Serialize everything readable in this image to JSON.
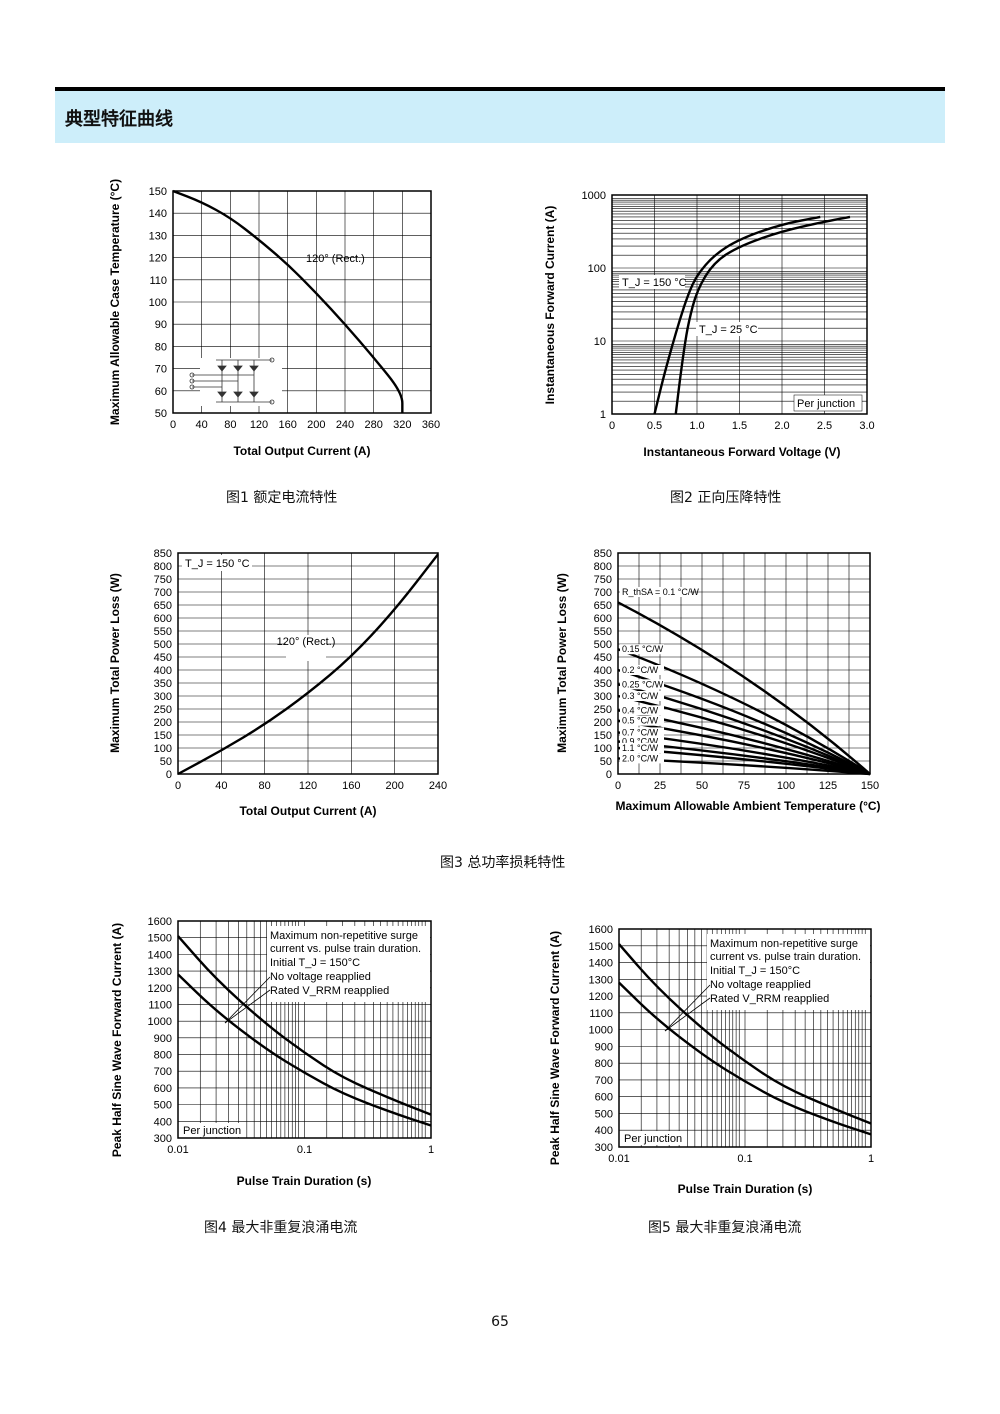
{
  "section_title": "典型特征曲线",
  "captions": {
    "fig1": "图1 额定电流特性",
    "fig2": "图2 正向压降特性",
    "fig3": "图3 总功率损耗特性",
    "fig4": "图4 最大非重复浪涌电流",
    "fig5": "图5 最大非重复浪涌电流"
  },
  "page_number": "65",
  "chart_data": [
    {
      "id": "fig1",
      "type": "line",
      "xlabel": "Total Output Current (A)",
      "ylabel": "Maximum Allowable Case Temperature (°C)",
      "xlim": [
        0,
        360
      ],
      "ylim": [
        50,
        150
      ],
      "xticks": [
        0,
        40,
        80,
        120,
        160,
        200,
        240,
        280,
        320,
        360
      ],
      "yticks": [
        50,
        60,
        70,
        80,
        90,
        100,
        110,
        120,
        130,
        140,
        150
      ],
      "grid": true,
      "annotations": [
        "120° (Rect.)"
      ],
      "series": [
        {
          "name": "120° (Rect.)",
          "x": [
            0,
            40,
            80,
            120,
            160,
            200,
            240,
            280,
            320,
            320
          ],
          "y": [
            150,
            145,
            138,
            128,
            117,
            104,
            90,
            75,
            59,
            50
          ]
        }
      ]
    },
    {
      "id": "fig2",
      "type": "line",
      "xlabel": "Instantaneous Forward Voltage (V)",
      "ylabel": "Instantaneous Forward Current (A)",
      "xlim": [
        0,
        3.0
      ],
      "ylim": [
        1,
        1000
      ],
      "yscale": "log",
      "xticks": [
        "0",
        "0.5",
        "1.0",
        "1.5",
        "2.0",
        "2.5",
        "3.0"
      ],
      "yticks": [
        "1",
        "10",
        "100",
        "1000"
      ],
      "grid": true,
      "annotations": [
        "Per junction"
      ],
      "series": [
        {
          "name": "T_J = 150 °C",
          "x": [
            0.5,
            0.6,
            0.7,
            0.8,
            0.9,
            1.0,
            1.2,
            1.5,
            2.0,
            2.45
          ],
          "y": [
            1,
            3,
            8,
            20,
            45,
            80,
            150,
            250,
            400,
            500
          ]
        },
        {
          "name": "T_J = 25 °C",
          "x": [
            0.75,
            0.8,
            0.85,
            0.9,
            1.0,
            1.2,
            1.5,
            2.0,
            2.5,
            2.8
          ],
          "y": [
            1,
            3,
            8,
            18,
            50,
            120,
            200,
            320,
            430,
            500
          ]
        }
      ]
    },
    {
      "id": "fig3a",
      "type": "line",
      "xlabel": "Total Output Current (A)",
      "ylabel": "Maximum Total Power Loss (W)",
      "xlim": [
        0,
        240
      ],
      "ylim": [
        0,
        850
      ],
      "xticks": [
        0,
        40,
        80,
        120,
        160,
        200,
        240
      ],
      "yticks": [
        0,
        50,
        100,
        150,
        200,
        250,
        300,
        350,
        400,
        450,
        500,
        550,
        600,
        650,
        700,
        750,
        800,
        850
      ],
      "grid": true,
      "annotations": [
        "T_J = 150 °C",
        "120° (Rect.)"
      ],
      "series": [
        {
          "name": "120° (Rect.)",
          "x": [
            0,
            40,
            80,
            120,
            160,
            200,
            240
          ],
          "y": [
            0,
            90,
            190,
            310,
            450,
            630,
            845
          ]
        }
      ]
    },
    {
      "id": "fig3b",
      "type": "line",
      "xlabel": "Maximum Allowable Ambient Temperature (°C)",
      "ylabel": "Maximum Total Power Loss (W)",
      "xlim": [
        0,
        150
      ],
      "ylim": [
        0,
        850
      ],
      "xticks": [
        0,
        25,
        50,
        75,
        100,
        125,
        150
      ],
      "yticks": [
        0,
        50,
        100,
        150,
        200,
        250,
        300,
        350,
        400,
        450,
        500,
        550,
        600,
        650,
        700,
        750,
        800,
        850
      ],
      "grid": true,
      "series_labels": [
        "R_thSA = 0.1 °C/W",
        "0.15 °C/W",
        "0.2 °C/W",
        "0.25 °C/W",
        "0.3 °C/W",
        "0.4 °C/W",
        "0.5 °C/W",
        "0.7 °C/W",
        "0.9 °C/W",
        "1.1 °C/W",
        "2.0 °C/W"
      ],
      "series": [
        {
          "name": "R_thSA = 0.1 °C/W",
          "x": [
            0,
            150
          ],
          "y": [
            660,
            0
          ]
        },
        {
          "name": "0.15 °C/W",
          "x": [
            0,
            150
          ],
          "y": [
            480,
            0
          ]
        },
        {
          "name": "0.2 °C/W",
          "x": [
            0,
            150
          ],
          "y": [
            400,
            0
          ]
        },
        {
          "name": "0.25 °C/W",
          "x": [
            0,
            150
          ],
          "y": [
            345,
            0
          ]
        },
        {
          "name": "0.3 °C/W",
          "x": [
            0,
            150
          ],
          "y": [
            300,
            0
          ]
        },
        {
          "name": "0.4 °C/W",
          "x": [
            0,
            150
          ],
          "y": [
            245,
            0
          ]
        },
        {
          "name": "0.5 °C/W",
          "x": [
            0,
            150
          ],
          "y": [
            205,
            0
          ]
        },
        {
          "name": "0.7 °C/W",
          "x": [
            0,
            150
          ],
          "y": [
            160,
            0
          ]
        },
        {
          "name": "0.9 °C/W",
          "x": [
            0,
            150
          ],
          "y": [
            125,
            0
          ]
        },
        {
          "name": "1.1 °C/W",
          "x": [
            0,
            150
          ],
          "y": [
            100,
            0
          ]
        },
        {
          "name": "2.0 °C/W",
          "x": [
            0,
            150
          ],
          "y": [
            60,
            0
          ]
        }
      ]
    },
    {
      "id": "fig4",
      "type": "line",
      "xlabel": "Pulse Train Duration (s)",
      "ylabel": "Peak Half Sine Wave Forward Current (A)",
      "xlim": [
        0.01,
        1
      ],
      "xscale": "log",
      "ylim": [
        300,
        1600
      ],
      "xticks": [
        "0.01",
        "0.1",
        "1"
      ],
      "yticks": [
        300,
        400,
        500,
        600,
        700,
        800,
        900,
        1000,
        1100,
        1200,
        1300,
        1400,
        1500,
        1600
      ],
      "grid": true,
      "annotations": [
        "Maximum non-repetitive surge",
        "current vs. pulse train duration.",
        "Initial T_J = 150°C",
        "No voltage reapplied",
        "Rated V_RRM reapplied",
        "Per junction"
      ],
      "series": [
        {
          "name": "No voltage reapplied",
          "x": [
            0.01,
            0.02,
            0.05,
            0.1,
            0.2,
            0.5,
            1
          ],
          "y": [
            1510,
            1250,
            980,
            810,
            660,
            530,
            440
          ]
        },
        {
          "name": "Rated V_RRM reapplied",
          "x": [
            0.01,
            0.02,
            0.05,
            0.1,
            0.2,
            0.5,
            1
          ],
          "y": [
            1280,
            1060,
            830,
            690,
            565,
            450,
            375
          ]
        }
      ]
    },
    {
      "id": "fig5",
      "type": "line",
      "xlabel": "Pulse Train Duration (s)",
      "ylabel": "Peak Half Sine Wave Forward Current (A)",
      "xlim": [
        0.01,
        1
      ],
      "xscale": "log",
      "ylim": [
        300,
        1600
      ],
      "xticks": [
        "0.01",
        "0.1",
        "1"
      ],
      "yticks": [
        300,
        400,
        500,
        600,
        700,
        800,
        900,
        1000,
        1100,
        1200,
        1300,
        1400,
        1500,
        1600
      ],
      "grid": true,
      "annotations": [
        "Maximum non-repetitive surge",
        "current vs. pulse train duration.",
        "Initial T_J = 150°C",
        "No voltage reapplied",
        "Rated V_RRM reapplied",
        "Per junction"
      ],
      "series": [
        {
          "name": "No voltage reapplied",
          "x": [
            0.01,
            0.02,
            0.05,
            0.1,
            0.2,
            0.5,
            1
          ],
          "y": [
            1510,
            1250,
            980,
            810,
            660,
            530,
            440
          ]
        },
        {
          "name": "Rated V_RRM reapplied",
          "x": [
            0.01,
            0.02,
            0.05,
            0.1,
            0.2,
            0.5,
            1
          ],
          "y": [
            1280,
            1060,
            830,
            690,
            565,
            450,
            375
          ]
        }
      ]
    }
  ]
}
